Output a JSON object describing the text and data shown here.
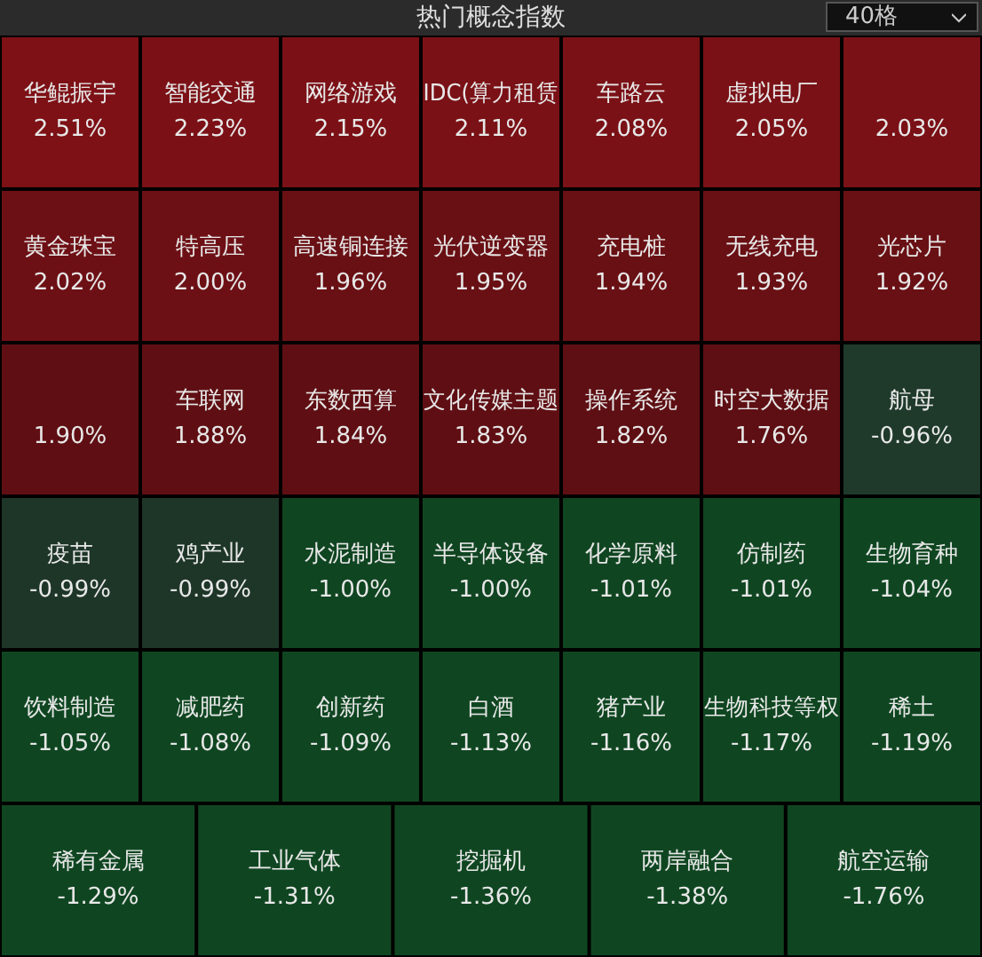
{
  "chart_data": {
    "type": "other",
    "title": "热门概念指数",
    "annotations": [
      "40格"
    ],
    "categories": [
      "华鲲振宇",
      "智能交通",
      "网络游戏",
      "IDC(算力租赁",
      "车路云",
      "虚拟电厂",
      null,
      "黄金珠宝",
      "特高压",
      "高速铜连接",
      "光伏逆变器",
      "充电桩",
      "无线充电",
      "光芯片",
      null,
      "车联网",
      "东数西算",
      "文化传媒主题",
      "操作系统",
      "时空大数据",
      "航母",
      "疫苗",
      "鸡产业",
      "水泥制造",
      "半导体设备",
      "化学原料",
      "仿制药",
      "生物育种",
      "饮料制造",
      "减肥药",
      "创新药",
      "白酒",
      "猪产业",
      "生物科技等权",
      "稀土",
      "稀有金属",
      "工业气体",
      "挖掘机",
      "两岸融合",
      "航空运输"
    ],
    "values": [
      2.51,
      2.23,
      2.15,
      2.11,
      2.08,
      2.05,
      2.03,
      2.02,
      2.0,
      1.96,
      1.95,
      1.94,
      1.93,
      1.92,
      1.9,
      1.88,
      1.84,
      1.83,
      1.82,
      1.76,
      -0.96,
      -0.99,
      -0.99,
      -1.0,
      -1.0,
      -1.01,
      -1.01,
      -1.04,
      -1.05,
      -1.08,
      -1.09,
      -1.13,
      -1.16,
      -1.17,
      -1.19,
      -1.29,
      -1.31,
      -1.36,
      -1.38,
      -1.76
    ],
    "value_labels": [
      "2.51%",
      "2.23%",
      "2.15%",
      "2.11%",
      "2.08%",
      "2.05%",
      "2.03%",
      "2.02%",
      "2.00%",
      "1.96%",
      "1.95%",
      "1.94%",
      "1.93%",
      "1.92%",
      "1.90%",
      "1.88%",
      "1.84%",
      "1.83%",
      "1.82%",
      "1.76%",
      "-0.96%",
      "-0.99%",
      "-0.99%",
      "-1.00%",
      "-1.00%",
      "-1.01%",
      "-1.01%",
      "-1.04%",
      "-1.05%",
      "-1.08%",
      "-1.09%",
      "-1.13%",
      "-1.16%",
      "-1.17%",
      "-1.19%",
      "-1.29%",
      "-1.31%",
      "-1.36%",
      "-1.38%",
      "-1.76%"
    ],
    "colors": [
      "#7d1116",
      "#7d1116",
      "#7d1116",
      "#7d1116",
      "#7d1116",
      "#7d1116",
      "#7d1116",
      "#6e1015",
      "#6e1015",
      "#6a1014",
      "#6a1014",
      "#6a1014",
      "#6a1014",
      "#6a1014",
      "#5f0f13",
      "#5f0f13",
      "#5f0f13",
      "#5f0f13",
      "#5f0f13",
      "#5f0f13",
      "#1f3a2c",
      "#1f3529",
      "#1f3529",
      "#0f4621",
      "#0f4621",
      "#0f4621",
      "#0f4621",
      "#0f4621",
      "#0f4621",
      "#0f4621",
      "#0f4621",
      "#0f4621",
      "#0f4621",
      "#0f4621",
      "#0f4621",
      "#0f4621",
      "#0f4621",
      "#0f4621",
      "#0f4621",
      "#0f4621"
    ]
  }
}
